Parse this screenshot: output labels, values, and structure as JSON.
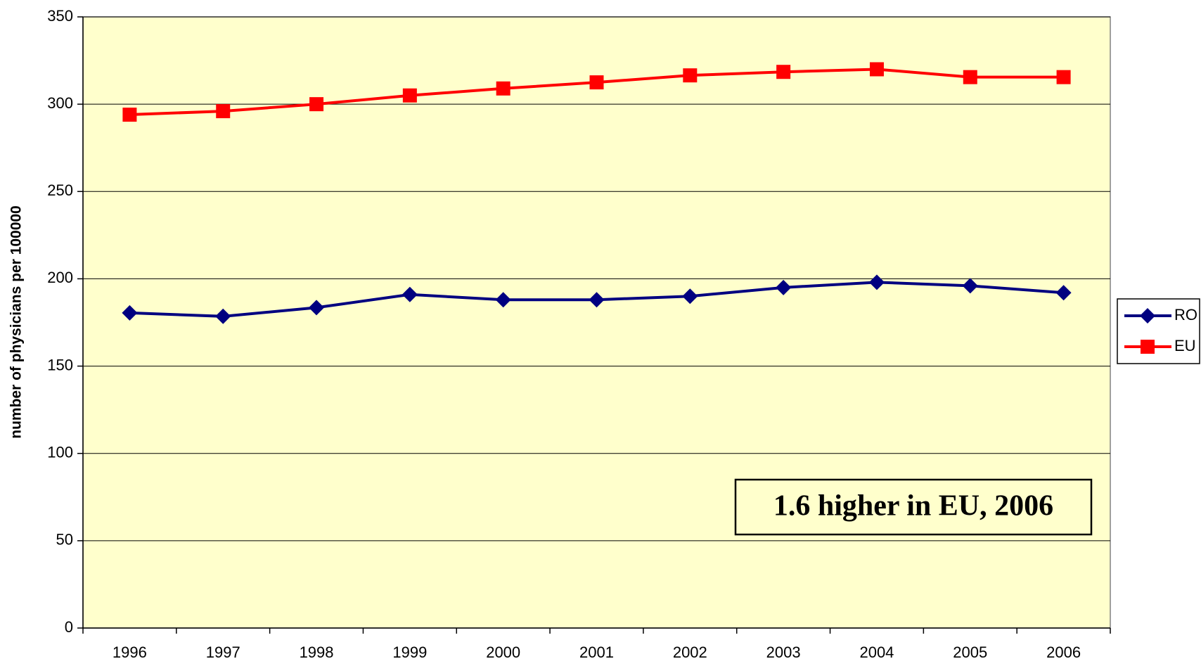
{
  "chart_data": {
    "type": "line",
    "y_label": "number of physicians per 100000",
    "categories": [
      "1996",
      "1997",
      "1998",
      "1999",
      "2000",
      "2001",
      "2002",
      "2003",
      "2004",
      "2005",
      "2006"
    ],
    "series": [
      {
        "name": "RO",
        "color": "#000080",
        "marker": "diamond",
        "values": [
          180.5,
          178.5,
          183.5,
          191,
          188,
          188,
          190,
          195,
          198,
          196,
          192
        ]
      },
      {
        "name": "EU",
        "color": "#ff0000",
        "marker": "square",
        "values": [
          294,
          296,
          300,
          305,
          309,
          312.5,
          316.5,
          318.5,
          320,
          315.5,
          315.5
        ]
      }
    ],
    "ylim": [
      0,
      350
    ],
    "yticks": [
      0,
      50,
      100,
      150,
      200,
      250,
      300,
      350
    ],
    "grid": true,
    "plot_background": "#ffffcc",
    "legend": "right",
    "annotation": "1.6 higher in EU, 2006"
  }
}
